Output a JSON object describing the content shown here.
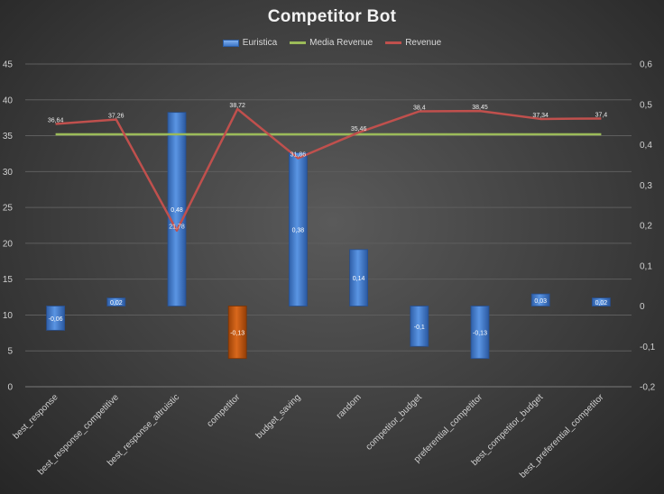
{
  "title": "Competitor Bot",
  "legend": [
    {
      "label": "Euristica",
      "color": "#4a86d8"
    },
    {
      "label": "Media Revenue",
      "color": "#9bbb59"
    },
    {
      "label": "Revenue",
      "color": "#c0504d"
    }
  ],
  "chart_data": {
    "type": "bar",
    "title": "Competitor Bot",
    "categories": [
      "best_response",
      "best_response_competitive",
      "best_response_altruistic",
      "competitor",
      "budget_saving",
      "random",
      "competitor_budget",
      "preferential_competitor",
      "best_competitor_budget",
      "best_preferential_competitor"
    ],
    "series": [
      {
        "name": "Euristica",
        "axis": "right",
        "type": "bar",
        "values": [
          -0.06,
          0.02,
          0.48,
          -0.13,
          0.38,
          0.14,
          -0.1,
          -0.13,
          0.03,
          0.02
        ],
        "labels": [
          "-0,06",
          "0,02",
          "0,48",
          "-0,13",
          "0,38",
          "0,14",
          "-0,1",
          "-0,13",
          "0,03",
          "0,02"
        ],
        "highlight_index": 3,
        "color": "#4a86d8",
        "highlight_color": "#c55a11"
      },
      {
        "name": "Media Revenue",
        "axis": "left",
        "type": "line",
        "values": [
          35.2,
          35.2,
          35.2,
          35.2,
          35.2,
          35.2,
          35.2,
          35.2,
          35.2,
          35.2
        ],
        "color": "#9bbb59"
      },
      {
        "name": "Revenue",
        "axis": "left",
        "type": "line",
        "values": [
          36.64,
          37.26,
          21.78,
          38.72,
          31.86,
          35.46,
          38.4,
          38.45,
          37.34,
          37.4
        ],
        "labels": [
          "36,64",
          "37,26",
          "21,78",
          "38,72",
          "31,86",
          "35,46",
          "38,4",
          "38,45",
          "37,34",
          "37,4"
        ],
        "color": "#c0504d"
      }
    ],
    "y_left": {
      "min": 0,
      "max": 45,
      "ticks": [
        "0",
        "5",
        "10",
        "15",
        "20",
        "25",
        "30",
        "35",
        "40",
        "45"
      ]
    },
    "y_right": {
      "min": -0.2,
      "max": 0.6,
      "ticks": [
        "-0,2",
        "-0,1",
        "0",
        "0,1",
        "0,2",
        "0,3",
        "0,4",
        "0,5",
        "0,6"
      ]
    },
    "grid": true,
    "legend_position": "top"
  }
}
